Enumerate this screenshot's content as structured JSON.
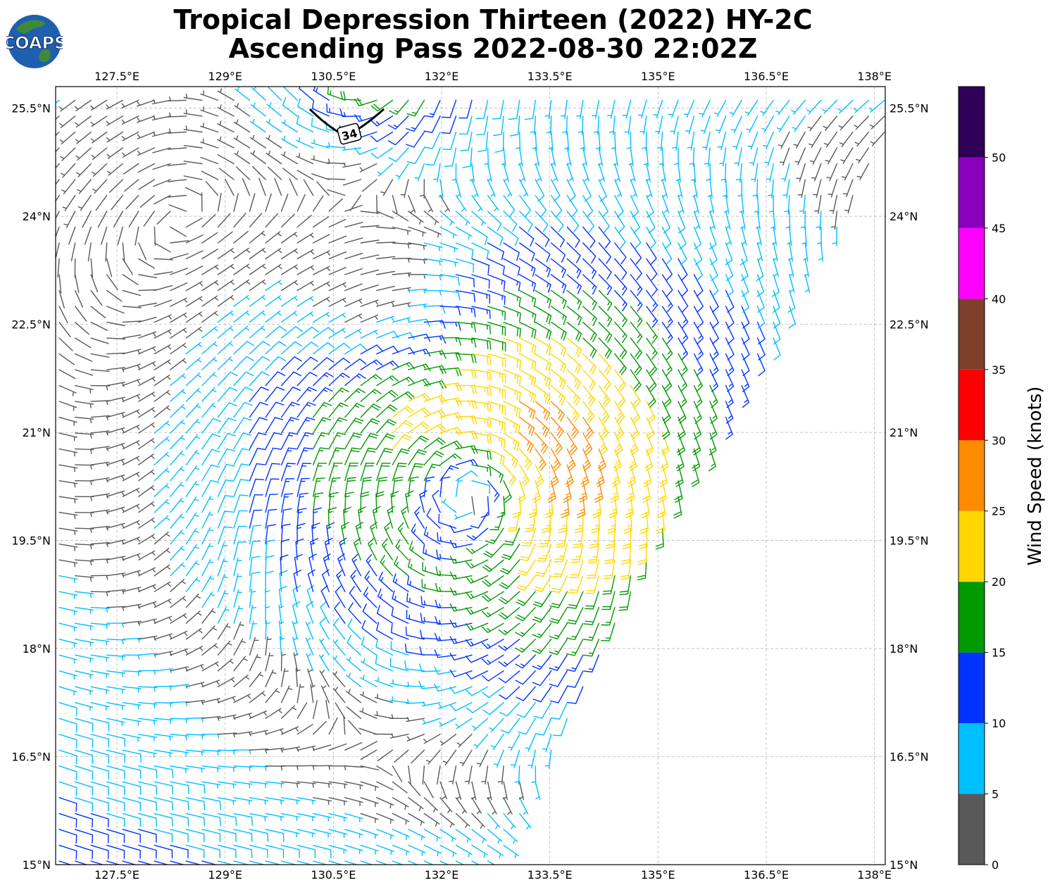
{
  "header": {
    "title_line1": "Tropical Depression Thirteen (2022) HY-2C",
    "title_line2": "Ascending Pass 2022-08-30 22:02Z",
    "logo_text": "COAPS"
  },
  "map": {
    "lon_ticks": [
      "127.5°E",
      "129°E",
      "130.5°E",
      "132°E",
      "133.5°E",
      "135°E",
      "136.5°E",
      "138°E"
    ],
    "lat_ticks": [
      "15°N",
      "16.5°N",
      "18°N",
      "19.5°N",
      "21°N",
      "22.5°N",
      "24°N",
      "25.5°N"
    ],
    "lon_range": [
      126.65,
      138.15
    ],
    "lat_range": [
      15.0,
      25.8
    ],
    "swath_edge_note_lonlat": [
      [
        132.8,
        15.0
      ],
      [
        135.0,
        19.5
      ],
      [
        138.15,
        25.0
      ]
    ],
    "storm_center": {
      "lon": 132.45,
      "lat": 20.2
    },
    "label_34kt": "34",
    "gridlines": true
  },
  "colorbar": {
    "label": "Wind Speed (knots)",
    "ticks": [
      "0",
      "5",
      "10",
      "15",
      "20",
      "25",
      "30",
      "35",
      "40",
      "45",
      "50"
    ],
    "bins": [
      {
        "from": 0,
        "to": 5,
        "color": "#595959"
      },
      {
        "from": 5,
        "to": 10,
        "color": "#00bfff"
      },
      {
        "from": 10,
        "to": 15,
        "color": "#0033ff"
      },
      {
        "from": 15,
        "to": 20,
        "color": "#009900"
      },
      {
        "from": 20,
        "to": 25,
        "color": "#ffd700"
      },
      {
        "from": 25,
        "to": 30,
        "color": "#ff8c00"
      },
      {
        "from": 30,
        "to": 35,
        "color": "#ff0000"
      },
      {
        "from": 35,
        "to": 40,
        "color": "#7f3f2a"
      },
      {
        "from": 40,
        "to": 45,
        "color": "#ff00ff"
      },
      {
        "from": 45,
        "to": 50,
        "color": "#8800bb"
      },
      {
        "from": 50,
        "to": 55,
        "color": "#2e0058"
      }
    ]
  }
}
